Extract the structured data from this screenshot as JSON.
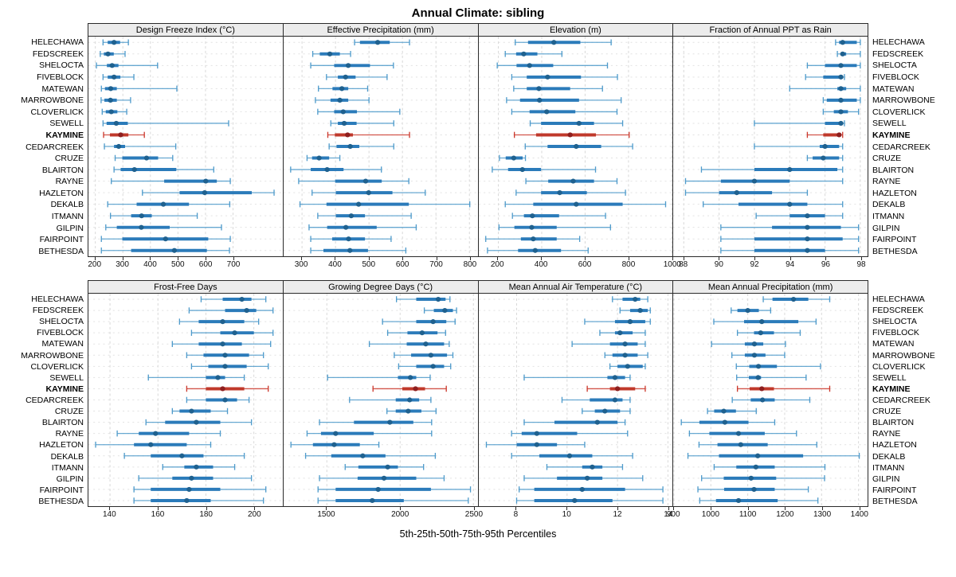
{
  "title": "Annual Climate: sibling",
  "caption": "5th-25th-50th-75th-95th Percentiles",
  "highlight_site": "KAYMINE",
  "colors": {
    "series_line": "#4f9bcb",
    "series_box": "#2b7bba",
    "series_dot": "#1f618f",
    "highlight_line": "#cc3a2e",
    "highlight_box": "#c0392b",
    "highlight_dot": "#8e1f1f",
    "grid": "#d9d9d9",
    "strip_bg": "#ececec",
    "border": "#2a2a2a"
  },
  "sites": [
    "HELECHAWA",
    "FEDSCREEK",
    "SHELOCTA",
    "FIVEBLOCK",
    "MATEWAN",
    "MARROWBONE",
    "CLOVERLICK",
    "SEWELL",
    "KAYMINE",
    "CEDARCREEK",
    "CRUZE",
    "BLAIRTON",
    "RAYNE",
    "HAZLETON",
    "DEKALB",
    "ITMANN",
    "GILPIN",
    "FAIRPOINT",
    "BETHESDA"
  ],
  "percentile_labels": [
    "5th",
    "25th",
    "50th",
    "75th",
    "95th"
  ],
  "chart_data": [
    {
      "type": "scatter-interval",
      "title": "Design Freeze Index (°C)",
      "ticks": [
        200,
        300,
        400,
        500,
        600,
        700
      ],
      "xlim": [
        175,
        880
      ],
      "values": [
        [
          228,
          245,
          268,
          290,
          320
        ],
        [
          218,
          231,
          246,
          267,
          308
        ],
        [
          204,
          242,
          261,
          284,
          426
        ],
        [
          228,
          245,
          268,
          291,
          340
        ],
        [
          222,
          235,
          256,
          278,
          496
        ],
        [
          221,
          233,
          255,
          278,
          328
        ],
        [
          225,
          238,
          258,
          280,
          314
        ],
        [
          228,
          241,
          276,
          318,
          684
        ],
        [
          230,
          253,
          292,
          320,
          378
        ],
        [
          233,
          268,
          285,
          308,
          492
        ],
        [
          272,
          298,
          386,
          428,
          481
        ],
        [
          268,
          292,
          342,
          494,
          630
        ],
        [
          258,
          450,
          601,
          641,
          690
        ],
        [
          371,
          506,
          597,
          768,
          849
        ],
        [
          245,
          350,
          447,
          540,
          688
        ],
        [
          255,
          330,
          368,
          405,
          570
        ],
        [
          238,
          278,
          367,
          470,
          658
        ],
        [
          222,
          298,
          455,
          610,
          690
        ],
        [
          222,
          330,
          487,
          605,
          687
        ]
      ]
    },
    {
      "type": "scatter-interval",
      "title": "Effective Precipitation (mm)",
      "ticks": [
        300,
        400,
        500,
        600,
        700,
        800
      ],
      "xlim": [
        245,
        825
      ],
      "values": [
        [
          457,
          473,
          526,
          562,
          621
        ],
        [
          332,
          353,
          383,
          413,
          445
        ],
        [
          326,
          396,
          438,
          503,
          573
        ],
        [
          373,
          407,
          430,
          460,
          554
        ],
        [
          349,
          391,
          419,
          438,
          496
        ],
        [
          340,
          385,
          413,
          438,
          500
        ],
        [
          347,
          396,
          423,
          464,
          592
        ],
        [
          386,
          407,
          426,
          463,
          574
        ],
        [
          377,
          398,
          436,
          452,
          621
        ],
        [
          381,
          403,
          444,
          471,
          574
        ],
        [
          315,
          330,
          351,
          381,
          413
        ],
        [
          266,
          326,
          375,
          424,
          537
        ],
        [
          290,
          399,
          490,
          538,
          619
        ],
        [
          330,
          401,
          499,
          570,
          668
        ],
        [
          294,
          373,
          469,
          619,
          801
        ],
        [
          347,
          401,
          447,
          488,
          626
        ],
        [
          321,
          375,
          431,
          523,
          641
        ],
        [
          326,
          390,
          439,
          488,
          566
        ],
        [
          326,
          364,
          443,
          497,
          610
        ]
      ]
    },
    {
      "type": "scatter-interval",
      "title": "Elevation (m)",
      "ticks": [
        200,
        400,
        600,
        800,
        1000
      ],
      "xlim": [
        110,
        1005
      ],
      "values": [
        [
          278,
          337,
          456,
          578,
          720
        ],
        [
          232,
          282,
          317,
          380,
          493
        ],
        [
          195,
          284,
          344,
          453,
          703
        ],
        [
          262,
          331,
          427,
          581,
          749
        ],
        [
          271,
          331,
          387,
          531,
          680
        ],
        [
          238,
          300,
          390,
          572,
          766
        ],
        [
          262,
          344,
          423,
          555,
          747
        ],
        [
          347,
          397,
          572,
          641,
          773
        ],
        [
          274,
          374,
          531,
          650,
          803
        ],
        [
          324,
          427,
          559,
          674,
          819
        ],
        [
          205,
          234,
          271,
          312,
          325
        ],
        [
          172,
          245,
          311,
          397,
          648
        ],
        [
          327,
          430,
          545,
          641,
          747
        ],
        [
          282,
          397,
          483,
          608,
          786
        ],
        [
          232,
          361,
          559,
          773,
          971
        ],
        [
          265,
          318,
          357,
          480,
          694
        ],
        [
          203,
          274,
          354,
          469,
          717
        ],
        [
          142,
          304,
          361,
          469,
          575
        ],
        [
          150,
          291,
          370,
          489,
          614
        ]
      ]
    },
    {
      "type": "scatter-interval",
      "title": "Fraction of Annual PPT as Rain",
      "ticks": [
        88,
        90,
        92,
        94,
        96,
        98
      ],
      "xlim": [
        87.4,
        98.4
      ],
      "values": [
        [
          96.6,
          96.8,
          97.0,
          97.8,
          98.0
        ],
        [
          96.7,
          96.9,
          97.0,
          97.2,
          98.0
        ],
        [
          95.0,
          96.0,
          96.9,
          97.8,
          98.0
        ],
        [
          94.9,
          95.9,
          96.9,
          97.0,
          97.1
        ],
        [
          94.0,
          96.7,
          96.9,
          97.2,
          98.0
        ],
        [
          95.9,
          96.1,
          96.9,
          97.8,
          98.0
        ],
        [
          95.9,
          96.5,
          96.9,
          97.3,
          97.9
        ],
        [
          92.0,
          96.0,
          96.9,
          97.0,
          97.1
        ],
        [
          95.0,
          95.9,
          96.8,
          96.9,
          97.0
        ],
        [
          92.0,
          95.7,
          96.0,
          96.8,
          97.0
        ],
        [
          95.0,
          95.3,
          95.9,
          96.8,
          97.0
        ],
        [
          89.0,
          92.0,
          94.0,
          96.7,
          97.0
        ],
        [
          88.1,
          90.1,
          92.0,
          94.0,
          97.0
        ],
        [
          88.1,
          90.0,
          91.0,
          93.0,
          95.0
        ],
        [
          89.1,
          91.1,
          94.0,
          95.0,
          97.0
        ],
        [
          92.1,
          94.0,
          95.0,
          96.0,
          97.0
        ],
        [
          90.1,
          93.0,
          95.0,
          96.9,
          97.9
        ],
        [
          90.1,
          92.0,
          95.0,
          97.0,
          97.9
        ],
        [
          90.1,
          92.0,
          95.0,
          96.0,
          97.9
        ]
      ]
    },
    {
      "type": "scatter-interval",
      "title": "Frost-Free Days",
      "ticks": [
        140,
        160,
        180,
        200
      ],
      "xlim": [
        131,
        212
      ],
      "values": [
        [
          178,
          187,
          195,
          199,
          205
        ],
        [
          173,
          188,
          197,
          201,
          208
        ],
        [
          169,
          177,
          187,
          196,
          202
        ],
        [
          174,
          186,
          192,
          200,
          208
        ],
        [
          166,
          177,
          187,
          195,
          207
        ],
        [
          172,
          179,
          188,
          198,
          204
        ],
        [
          174,
          181,
          188,
          197,
          206
        ],
        [
          156,
          180,
          185,
          188,
          196
        ],
        [
          172,
          180,
          187,
          196,
          206
        ],
        [
          172,
          180,
          188,
          193,
          198
        ],
        [
          166,
          169,
          174,
          182,
          189
        ],
        [
          155,
          163,
          176,
          186,
          199
        ],
        [
          143,
          152,
          159,
          173,
          186
        ],
        [
          134,
          150,
          157,
          172,
          182
        ],
        [
          146,
          157,
          170,
          179,
          196
        ],
        [
          162,
          171,
          176,
          183,
          192
        ],
        [
          152,
          166,
          174,
          183,
          199
        ],
        [
          150,
          157,
          173,
          186,
          205
        ],
        [
          150,
          157,
          172,
          182,
          204
        ]
      ]
    },
    {
      "type": "scatter-interval",
      "title": "Growing Degree Days (°C)",
      "ticks": [
        1500,
        2000,
        2500
      ],
      "xlim": [
        1205,
        2530
      ],
      "values": [
        [
          1975,
          2110,
          2260,
          2310,
          2340
        ],
        [
          2165,
          2230,
          2305,
          2360,
          2385
        ],
        [
          1880,
          2110,
          2225,
          2315,
          2375
        ],
        [
          1915,
          2050,
          2150,
          2255,
          2310
        ],
        [
          1790,
          2045,
          2175,
          2300,
          2335
        ],
        [
          1960,
          2075,
          2210,
          2320,
          2360
        ],
        [
          1990,
          2110,
          2225,
          2300,
          2345
        ],
        [
          1505,
          1985,
          2070,
          2110,
          2205
        ],
        [
          1815,
          2015,
          2105,
          2170,
          2315
        ],
        [
          1655,
          1970,
          2065,
          2130,
          2210
        ],
        [
          1910,
          1970,
          2055,
          2145,
          2245
        ],
        [
          1450,
          1685,
          1930,
          2090,
          2215
        ],
        [
          1365,
          1460,
          1560,
          1820,
          2215
        ],
        [
          1255,
          1405,
          1550,
          1725,
          1855
        ],
        [
          1355,
          1530,
          1745,
          1900,
          2240
        ],
        [
          1625,
          1715,
          1915,
          1985,
          2160
        ],
        [
          1450,
          1710,
          1890,
          2110,
          2300
        ],
        [
          1440,
          1560,
          1850,
          2210,
          2480
        ],
        [
          1440,
          1560,
          1810,
          2025,
          2465
        ]
      ]
    },
    {
      "type": "scatter-interval",
      "title": "Mean Annual Air Temperature (°C)",
      "ticks": [
        8,
        10,
        12,
        14
      ],
      "xlim": [
        6.5,
        14.2
      ],
      "values": [
        [
          11.8,
          12.2,
          12.7,
          12.9,
          13.2
        ],
        [
          12.1,
          12.5,
          12.9,
          13.2,
          13.3
        ],
        [
          10.7,
          11.9,
          12.5,
          13.1,
          13.3
        ],
        [
          11.3,
          11.9,
          12.1,
          12.6,
          13.1
        ],
        [
          10.2,
          11.7,
          12.3,
          12.8,
          13.1
        ],
        [
          11.5,
          11.8,
          12.3,
          12.8,
          13.2
        ],
        [
          11.7,
          12.0,
          12.4,
          13.0,
          13.1
        ],
        [
          8.3,
          11.6,
          11.9,
          12.3,
          12.5
        ],
        [
          10.8,
          11.7,
          12.0,
          12.7,
          13.1
        ],
        [
          9.8,
          10.9,
          11.9,
          12.2,
          12.5
        ],
        [
          10.6,
          11.1,
          11.5,
          12.1,
          12.5
        ],
        [
          8.3,
          9.5,
          11.2,
          12.0,
          12.3
        ],
        [
          7.8,
          8.2,
          8.8,
          10.4,
          12.4
        ],
        [
          6.8,
          8.0,
          8.8,
          9.6,
          10.7
        ],
        [
          7.8,
          8.9,
          10.1,
          11.0,
          12.6
        ],
        [
          9.2,
          10.6,
          11.0,
          11.4,
          12.2
        ],
        [
          8.3,
          9.6,
          10.8,
          11.4,
          13.0
        ],
        [
          8.1,
          8.7,
          10.6,
          12.3,
          13.8
        ],
        [
          8.0,
          8.7,
          10.3,
          11.8,
          13.8
        ]
      ]
    },
    {
      "type": "scatter-interval",
      "title": "Mean Annual Precipitation (mm)",
      "ticks": [
        900,
        1000,
        1100,
        1200,
        1300,
        1400
      ],
      "xlim": [
        898,
        1424
      ],
      "values": [
        [
          1142,
          1167,
          1224,
          1264,
          1322
        ],
        [
          1055,
          1072,
          1100,
          1130,
          1162
        ],
        [
          1008,
          1090,
          1138,
          1237,
          1285
        ],
        [
          1072,
          1117,
          1135,
          1171,
          1242
        ],
        [
          1002,
          1092,
          1118,
          1142,
          1202
        ],
        [
          1057,
          1092,
          1118,
          1148,
          1200
        ],
        [
          1069,
          1104,
          1129,
          1179,
          1297
        ],
        [
          1070,
          1103,
          1128,
          1136,
          1258
        ],
        [
          1072,
          1105,
          1138,
          1171,
          1322
        ],
        [
          1058,
          1108,
          1140,
          1173,
          1268
        ],
        [
          991,
          1009,
          1035,
          1068,
          1123
        ],
        [
          920,
          969,
          1038,
          1102,
          1173
        ],
        [
          942,
          996,
          1075,
          1146,
          1232
        ],
        [
          968,
          1018,
          1081,
          1154,
          1287
        ],
        [
          938,
          1022,
          1127,
          1250,
          1402
        ],
        [
          1009,
          1069,
          1122,
          1173,
          1309
        ],
        [
          975,
          1035,
          1109,
          1177,
          1308
        ],
        [
          965,
          1036,
          1117,
          1173,
          1264
        ],
        [
          970,
          1014,
          1075,
          1181,
          1290
        ]
      ]
    }
  ]
}
